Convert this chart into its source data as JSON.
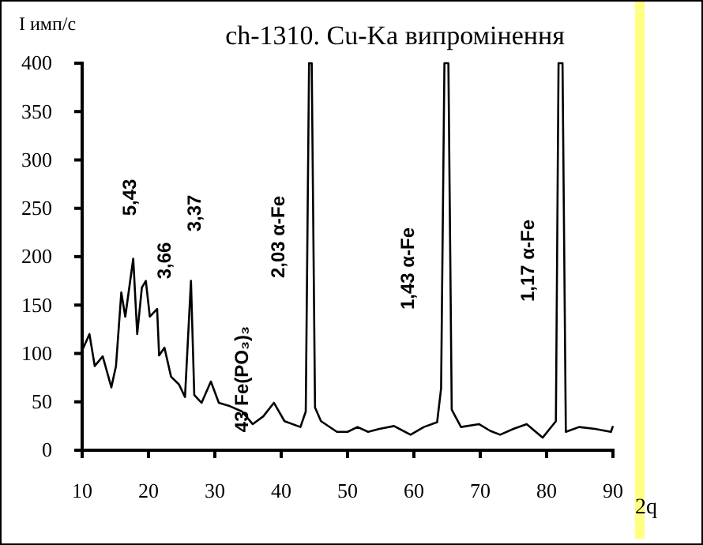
{
  "chart_data": {
    "type": "line",
    "title": "ch-1310. Cu-Ka випромінення",
    "xlabel": "2q",
    "ylabel": "І имп/с",
    "xlim": [
      10,
      90
    ],
    "xticks": [
      10,
      20,
      30,
      40,
      50,
      60,
      70,
      80,
      90
    ],
    "ylim": [
      0,
      400
    ],
    "yticks": [
      0,
      50,
      100,
      150,
      200,
      250,
      300,
      350,
      400
    ],
    "grid": false,
    "line_style": "solid",
    "marker": "none",
    "series": [
      {
        "color": "#000000",
        "x": [
          10.0,
          11.1,
          11.9,
          13.1,
          14.4,
          15.1,
          15.9,
          16.5,
          17.7,
          18.3,
          19.0,
          19.6,
          20.2,
          21.3,
          21.6,
          22.4,
          23.4,
          24.6,
          25.5,
          26.4,
          26.9,
          28.0,
          29.4,
          30.6,
          32.1,
          34.1,
          35.7,
          37.3,
          38.9,
          40.5,
          42.9,
          43.7,
          44.2,
          44.6,
          45.1,
          46.0,
          48.4,
          50.0,
          51.5,
          53.1,
          54.8,
          57.0,
          59.5,
          61.5,
          63.5,
          64.1,
          64.6,
          65.2,
          65.7,
          67.1,
          69.8,
          71.5,
          73.0,
          75.0,
          77.0,
          79.4,
          81.4,
          81.8,
          82.4,
          82.9,
          84.9,
          87.3,
          89.7,
          90.0
        ],
        "values": [
          103,
          120,
          87,
          97,
          65,
          87,
          163,
          138,
          198,
          120,
          168,
          175,
          138,
          146,
          98,
          106,
          76,
          68,
          55,
          175,
          57,
          49,
          71,
          49,
          46,
          40,
          27,
          35,
          49,
          30,
          24,
          40,
          400,
          400,
          44,
          30,
          19,
          19,
          24,
          19,
          22,
          25,
          16,
          24,
          29,
          64,
          400,
          400,
          42,
          24,
          27,
          20,
          16,
          22,
          27,
          13,
          30,
          400,
          400,
          19,
          24,
          22,
          19,
          25
        ]
      }
    ],
    "annotations": [
      "5,43",
      "3,66",
      "3,37",
      "43 Fe(PO₃)₃",
      "2,03 α-Fe",
      "1,43 α-Fe",
      "1,17 α-Fe"
    ]
  }
}
